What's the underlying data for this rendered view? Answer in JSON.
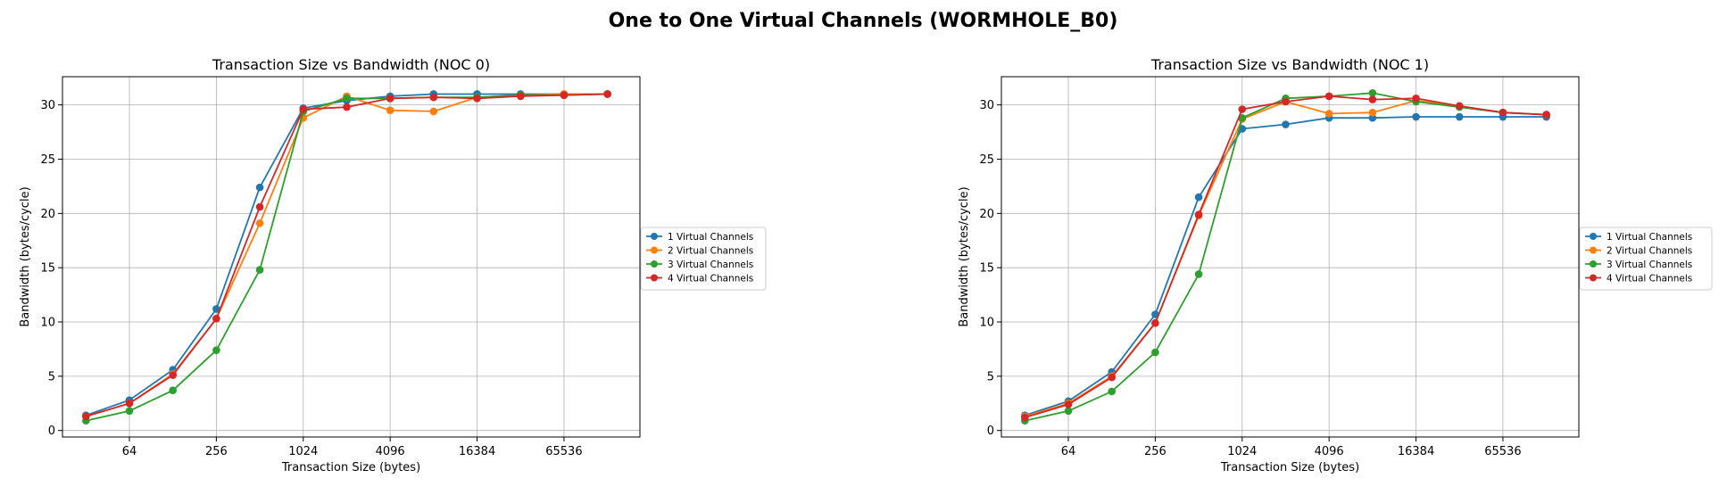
{
  "suptitle": "One to One Virtual Channels (WORMHOLE_B0)",
  "chart_data": [
    {
      "type": "line",
      "title": "Transaction Size vs Bandwidth (NOC 0)",
      "xlabel": "Transaction Size (bytes)",
      "ylabel": "Bandwidth (bytes/cycle)",
      "x_scale": "log2",
      "x_ticks": [
        64,
        256,
        1024,
        4096,
        16384,
        65536
      ],
      "y_ticks": [
        0,
        5,
        10,
        15,
        20,
        25,
        30
      ],
      "xlim": [
        22,
        220000
      ],
      "ylim": [
        -0.6,
        32.6
      ],
      "grid": true,
      "legend_position": "right",
      "x": [
        32,
        64,
        128,
        256,
        512,
        1024,
        2048,
        4096,
        8192,
        16384,
        32768,
        65536,
        131072
      ],
      "series": [
        {
          "name": "1 Virtual Channels",
          "color": "#1f77b4",
          "values": [
            1.4,
            2.8,
            5.6,
            11.2,
            22.4,
            29.7,
            30.4,
            30.8,
            31.0,
            31.0,
            31.0,
            31.0,
            31.0
          ]
        },
        {
          "name": "2 Virtual Channels",
          "color": "#ff7f0e",
          "values": [
            1.3,
            2.5,
            5.2,
            10.3,
            19.1,
            28.8,
            30.8,
            29.5,
            29.4,
            30.7,
            30.9,
            31.0,
            31.0
          ]
        },
        {
          "name": "3 Virtual Channels",
          "color": "#2ca02c",
          "values": [
            0.9,
            1.8,
            3.7,
            7.4,
            14.8,
            29.4,
            30.6,
            30.6,
            30.7,
            30.7,
            30.9,
            30.9,
            31.0
          ]
        },
        {
          "name": "4 Virtual Channels",
          "color": "#d62728",
          "values": [
            1.3,
            2.5,
            5.1,
            10.3,
            20.6,
            29.6,
            29.8,
            30.6,
            30.7,
            30.6,
            30.8,
            30.9,
            31.0
          ]
        }
      ]
    },
    {
      "type": "line",
      "title": "Transaction Size vs Bandwidth (NOC 1)",
      "xlabel": "Transaction Size (bytes)",
      "ylabel": "Bandwidth (bytes/cycle)",
      "x_scale": "log2",
      "x_ticks": [
        64,
        256,
        1024,
        4096,
        16384,
        65536
      ],
      "y_ticks": [
        0,
        5,
        10,
        15,
        20,
        25,
        30
      ],
      "xlim": [
        22,
        220000
      ],
      "ylim": [
        -0.6,
        32.6
      ],
      "grid": true,
      "legend_position": "right",
      "x": [
        32,
        64,
        128,
        256,
        512,
        1024,
        2048,
        4096,
        8192,
        16384,
        32768,
        65536,
        131072
      ],
      "series": [
        {
          "name": "1 Virtual Channels",
          "color": "#1f77b4",
          "values": [
            1.4,
            2.7,
            5.4,
            10.7,
            21.5,
            27.8,
            28.2,
            28.8,
            28.8,
            28.9,
            28.9,
            28.9,
            28.9
          ]
        },
        {
          "name": "2 Virtual Channels",
          "color": "#ff7f0e",
          "values": [
            1.3,
            2.5,
            5.0,
            9.9,
            19.8,
            28.7,
            30.3,
            29.2,
            29.3,
            30.4,
            29.9,
            29.3,
            29.1
          ]
        },
        {
          "name": "3 Virtual Channels",
          "color": "#2ca02c",
          "values": [
            0.9,
            1.8,
            3.6,
            7.2,
            14.4,
            28.8,
            30.6,
            30.8,
            31.1,
            30.3,
            29.8,
            29.3,
            29.1
          ]
        },
        {
          "name": "4 Virtual Channels",
          "color": "#d62728",
          "values": [
            1.2,
            2.4,
            4.9,
            9.9,
            19.9,
            29.6,
            30.3,
            30.8,
            30.5,
            30.6,
            29.9,
            29.3,
            29.1
          ]
        }
      ]
    }
  ]
}
